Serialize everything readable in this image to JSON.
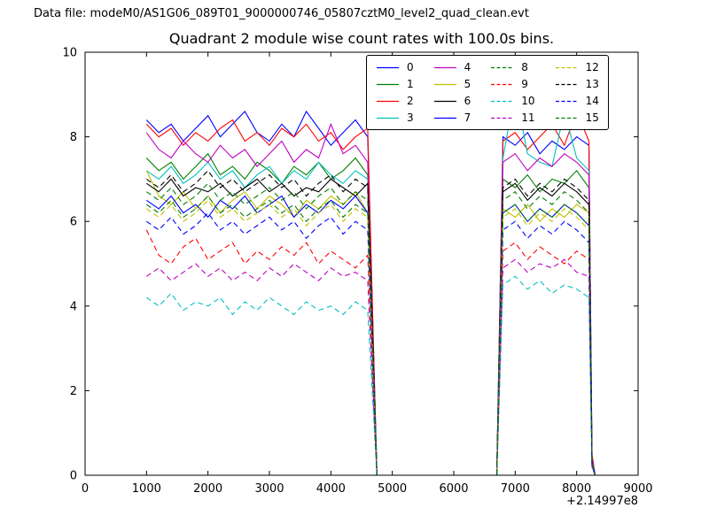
{
  "header": {
    "datafile": "Data file: modeM0/AS1G06_089T01_9000000746_05807cztM0_level2_quad_clean.evt"
  },
  "chart_data": {
    "type": "line",
    "title": "Quadrant 2 module wise count rates with 100.0s bins.",
    "xlabel": "",
    "ylabel": "",
    "x_offset_label": "+2.14997e8",
    "xlim": [
      0,
      9000
    ],
    "ylim": [
      0,
      10
    ],
    "xticks": [
      0,
      1000,
      2000,
      3000,
      4000,
      5000,
      6000,
      7000,
      8000,
      9000
    ],
    "yticks": [
      0,
      2,
      4,
      6,
      8,
      10
    ],
    "grid": false,
    "legend_position": "upper center, 4 columns, inside axes",
    "x": [
      1000,
      1200,
      1400,
      1600,
      1800,
      2000,
      2200,
      2400,
      2600,
      2800,
      3000,
      3200,
      3400,
      3600,
      3800,
      4000,
      4200,
      4400,
      4600,
      4750,
      6700,
      6800,
      7000,
      7200,
      7400,
      7600,
      7800,
      8000,
      8200,
      8250,
      8300
    ],
    "series": [
      {
        "name": "0",
        "color": "#0000ff",
        "style": "solid",
        "values": [
          8.4,
          8.1,
          8.3,
          7.9,
          8.2,
          8.5,
          8.0,
          8.3,
          8.6,
          8.1,
          7.9,
          8.3,
          8.0,
          8.6,
          8.2,
          7.8,
          8.1,
          8.4,
          8.0,
          0,
          0,
          8.0,
          7.8,
          8.1,
          7.6,
          7.9,
          7.7,
          8.0,
          7.8,
          0.4,
          0
        ]
      },
      {
        "name": "1",
        "color": "#007f00",
        "style": "solid",
        "values": [
          7.5,
          7.2,
          7.4,
          7.0,
          7.3,
          7.6,
          7.1,
          7.3,
          7.0,
          7.4,
          7.2,
          6.9,
          7.3,
          7.1,
          7.4,
          7.0,
          7.2,
          7.5,
          7.1,
          0,
          0,
          7.0,
          6.8,
          7.1,
          6.7,
          7.0,
          6.9,
          7.2,
          6.8,
          0.3,
          0
        ]
      },
      {
        "name": "2",
        "color": "#ff0000",
        "style": "solid",
        "values": [
          8.3,
          8.0,
          8.2,
          7.8,
          8.1,
          7.9,
          8.2,
          8.4,
          7.9,
          8.1,
          7.8,
          8.2,
          8.0,
          8.3,
          7.9,
          8.1,
          7.7,
          8.0,
          8.2,
          0,
          0,
          7.9,
          8.1,
          7.7,
          8.0,
          8.3,
          7.8,
          8.6,
          7.9,
          0.5,
          0
        ]
      },
      {
        "name": "3",
        "color": "#00bfbf",
        "style": "solid",
        "values": [
          7.2,
          7.0,
          7.3,
          6.9,
          7.1,
          7.4,
          7.0,
          7.2,
          6.8,
          7.1,
          7.3,
          6.9,
          7.2,
          7.0,
          7.4,
          7.1,
          6.9,
          7.2,
          7.0,
          0,
          0,
          7.5,
          9.1,
          7.6,
          7.4,
          7.3,
          8.6,
          7.5,
          7.2,
          0.4,
          0
        ]
      },
      {
        "name": "4",
        "color": "#bf00bf",
        "style": "solid",
        "values": [
          8.1,
          7.7,
          7.5,
          7.9,
          7.6,
          7.4,
          7.8,
          7.5,
          7.7,
          7.3,
          7.6,
          7.9,
          7.4,
          7.7,
          7.5,
          8.3,
          7.6,
          7.8,
          7.4,
          0,
          0,
          7.4,
          7.6,
          7.2,
          7.5,
          7.3,
          7.6,
          7.4,
          7.1,
          0.4,
          0
        ]
      },
      {
        "name": "5",
        "color": "#bfbf00",
        "style": "solid",
        "values": [
          7.2,
          6.6,
          6.4,
          6.7,
          6.3,
          6.6,
          6.2,
          6.5,
          6.7,
          6.3,
          6.6,
          6.4,
          6.1,
          6.5,
          6.3,
          6.6,
          6.4,
          6.7,
          6.2,
          0,
          0,
          6.3,
          6.1,
          6.4,
          6.0,
          6.3,
          6.1,
          6.4,
          6.2,
          0.3,
          0
        ]
      },
      {
        "name": "6",
        "color": "#000000",
        "style": "solid",
        "values": [
          6.9,
          6.7,
          7.0,
          6.6,
          6.8,
          6.7,
          6.9,
          6.6,
          6.8,
          7.0,
          6.7,
          6.9,
          6.6,
          6.8,
          6.7,
          7.0,
          6.8,
          6.6,
          6.9,
          0,
          0,
          6.7,
          6.9,
          6.5,
          6.8,
          6.6,
          6.9,
          6.7,
          6.4,
          0.3,
          0
        ]
      },
      {
        "name": "7",
        "color": "#0000ff",
        "style": "solid",
        "values": [
          6.5,
          6.3,
          6.6,
          6.2,
          6.4,
          6.1,
          6.5,
          6.3,
          6.6,
          6.2,
          6.4,
          6.6,
          6.1,
          6.4,
          6.2,
          6.5,
          6.3,
          6.6,
          6.2,
          0,
          0,
          6.2,
          6.4,
          6.0,
          6.3,
          6.1,
          6.4,
          6.2,
          5.9,
          0.3,
          0
        ]
      },
      {
        "name": "8",
        "color": "#007f00",
        "style": "dashed",
        "values": [
          6.7,
          6.5,
          6.8,
          6.4,
          6.6,
          6.9,
          6.5,
          6.7,
          6.4,
          6.6,
          6.8,
          6.5,
          6.7,
          6.3,
          6.6,
          6.8,
          6.4,
          6.7,
          6.5,
          0,
          0,
          6.5,
          6.7,
          6.3,
          6.6,
          6.4,
          6.7,
          6.5,
          6.2,
          0.3,
          0
        ]
      },
      {
        "name": "9",
        "color": "#ff0000",
        "style": "dashed",
        "values": [
          5.8,
          5.2,
          5.0,
          5.4,
          5.6,
          5.1,
          5.3,
          5.5,
          5.0,
          5.3,
          5.1,
          5.4,
          5.2,
          5.5,
          5.0,
          5.3,
          5.1,
          4.9,
          5.2,
          0,
          0,
          5.3,
          5.5,
          5.1,
          5.4,
          5.2,
          5.0,
          5.3,
          5.1,
          0.2,
          0
        ]
      },
      {
        "name": "10",
        "color": "#00bfbf",
        "style": "dashed",
        "values": [
          4.2,
          4.0,
          4.3,
          3.9,
          4.1,
          4.0,
          4.2,
          3.8,
          4.1,
          3.9,
          4.2,
          4.0,
          3.8,
          4.1,
          3.9,
          4.0,
          3.8,
          4.1,
          3.9,
          0,
          0,
          4.5,
          4.7,
          4.4,
          4.6,
          4.3,
          4.5,
          4.4,
          4.2,
          0.2,
          0
        ]
      },
      {
        "name": "11",
        "color": "#bf00bf",
        "style": "dashed",
        "values": [
          4.7,
          4.9,
          4.6,
          4.8,
          5.0,
          4.7,
          4.9,
          4.6,
          4.8,
          4.6,
          4.9,
          4.7,
          5.0,
          4.8,
          4.6,
          4.9,
          4.7,
          4.8,
          4.6,
          0,
          0,
          4.9,
          5.1,
          4.8,
          5.0,
          4.9,
          5.1,
          4.8,
          4.7,
          0.2,
          0
        ]
      },
      {
        "name": "12",
        "color": "#bfbf00",
        "style": "dashed",
        "values": [
          6.3,
          6.1,
          6.4,
          6.0,
          6.2,
          6.5,
          6.1,
          6.3,
          6.0,
          6.2,
          6.4,
          6.1,
          6.3,
          5.9,
          6.2,
          6.4,
          6.0,
          6.3,
          6.1,
          0,
          0,
          6.1,
          6.3,
          5.9,
          6.2,
          6.0,
          6.3,
          6.1,
          5.8,
          0.3,
          0
        ]
      },
      {
        "name": "13",
        "color": "#000000",
        "style": "dashed",
        "values": [
          7.0,
          6.8,
          7.1,
          6.7,
          6.9,
          7.2,
          6.8,
          7.0,
          6.7,
          6.9,
          7.1,
          6.8,
          7.0,
          6.6,
          6.9,
          7.1,
          6.7,
          7.0,
          6.8,
          0,
          0,
          6.8,
          7.0,
          6.6,
          6.9,
          6.7,
          7.0,
          6.8,
          6.5,
          0.3,
          0
        ]
      },
      {
        "name": "14",
        "color": "#0000ff",
        "style": "dashed",
        "values": [
          6.0,
          5.8,
          6.1,
          5.7,
          5.9,
          6.2,
          5.8,
          6.0,
          5.7,
          5.9,
          6.1,
          5.8,
          6.0,
          5.6,
          5.9,
          6.1,
          5.7,
          6.0,
          5.8,
          0,
          0,
          5.8,
          6.0,
          5.6,
          5.9,
          5.7,
          6.0,
          5.8,
          5.5,
          0.25,
          0
        ]
      },
      {
        "name": "15",
        "color": "#007f00",
        "style": "dashed",
        "values": [
          6.4,
          6.2,
          6.5,
          6.1,
          6.3,
          6.6,
          6.2,
          6.4,
          6.1,
          6.3,
          6.5,
          6.2,
          6.4,
          6.0,
          6.3,
          6.5,
          6.1,
          6.4,
          6.2,
          0,
          0,
          6.2,
          6.4,
          6.0,
          6.3,
          6.1,
          6.4,
          6.2,
          5.9,
          0.3,
          0
        ]
      }
    ]
  }
}
